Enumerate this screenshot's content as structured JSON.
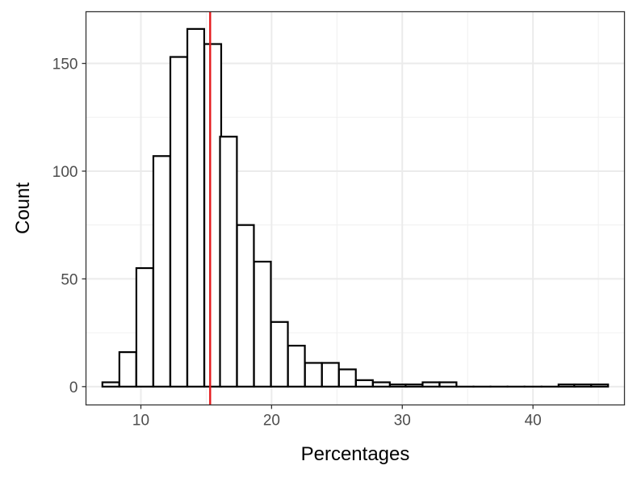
{
  "chart_data": {
    "type": "bar",
    "title": "",
    "xlabel": "Percentages",
    "ylabel": "Count",
    "xlim": [
      5.8,
      47.0
    ],
    "ylim": [
      -8.5,
      174
    ],
    "x_ticks": [
      10,
      20,
      30,
      40
    ],
    "y_ticks": [
      0,
      50,
      100,
      150
    ],
    "grid": true,
    "bin_width": 1.29,
    "bins": [
      {
        "x": 7.7,
        "count": 2
      },
      {
        "x": 9.0,
        "count": 16
      },
      {
        "x": 10.3,
        "count": 55
      },
      {
        "x": 11.6,
        "count": 107
      },
      {
        "x": 12.9,
        "count": 153
      },
      {
        "x": 14.2,
        "count": 166
      },
      {
        "x": 15.5,
        "count": 159
      },
      {
        "x": 16.7,
        "count": 116
      },
      {
        "x": 18.0,
        "count": 75
      },
      {
        "x": 19.3,
        "count": 58
      },
      {
        "x": 20.6,
        "count": 30
      },
      {
        "x": 21.9,
        "count": 19
      },
      {
        "x": 23.2,
        "count": 11
      },
      {
        "x": 24.5,
        "count": 11
      },
      {
        "x": 25.8,
        "count": 8
      },
      {
        "x": 27.1,
        "count": 3
      },
      {
        "x": 28.4,
        "count": 2
      },
      {
        "x": 29.7,
        "count": 1
      },
      {
        "x": 30.9,
        "count": 1
      },
      {
        "x": 32.2,
        "count": 2
      },
      {
        "x": 33.5,
        "count": 2
      },
      {
        "x": 34.8,
        "count": 0
      },
      {
        "x": 36.1,
        "count": 0
      },
      {
        "x": 37.4,
        "count": 0
      },
      {
        "x": 38.7,
        "count": 0
      },
      {
        "x": 40.0,
        "count": 0
      },
      {
        "x": 41.3,
        "count": 0
      },
      {
        "x": 42.6,
        "count": 1
      },
      {
        "x": 43.8,
        "count": 1
      },
      {
        "x": 45.1,
        "count": 1
      }
    ],
    "bar_fill": "#ffffff",
    "bar_stroke": "#000000",
    "reference_line": {
      "x": 15.3,
      "color": "#e41a1c"
    }
  }
}
